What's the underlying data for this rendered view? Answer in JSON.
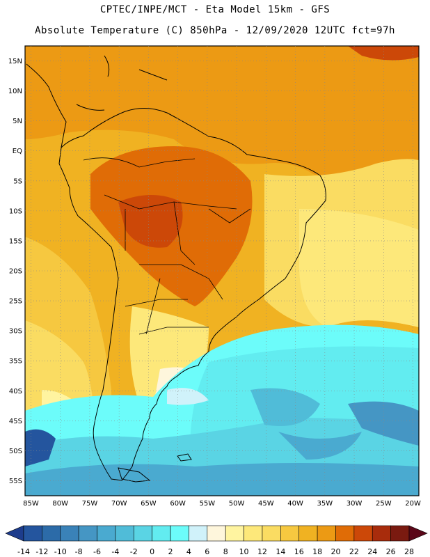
{
  "header": {
    "line1": "CPTEC/INPE/MCT -  Eta Model 15km - GFS",
    "line2": "Absolute Temperature (C) 850hPa - 12/09/2020 12UTC fct=97h"
  },
  "map": {
    "lat_labels": [
      "15N",
      "10N",
      "5N",
      "EQ",
      "5S",
      "10S",
      "15S",
      "20S",
      "25S",
      "30S",
      "35S",
      "40S",
      "45S",
      "50S",
      "55S"
    ],
    "lon_labels": [
      "85W",
      "80W",
      "75W",
      "70W",
      "65W",
      "60W",
      "55W",
      "50W",
      "45W",
      "40W",
      "35W",
      "30W",
      "25W",
      "20W"
    ],
    "lat_range": [
      17.5,
      -57.5
    ],
    "lon_range": [
      -86,
      -19
    ]
  },
  "colorbar": {
    "labels": [
      "-14",
      "-12",
      "-10",
      "-8",
      "-6",
      "-4",
      "-2",
      "0",
      "2",
      "4",
      "6",
      "8",
      "10",
      "12",
      "14",
      "16",
      "18",
      "20",
      "22",
      "24",
      "26",
      "28"
    ],
    "colors": [
      "#1d3c8c",
      "#24559e",
      "#2c6ba8",
      "#3a82b8",
      "#4596c4",
      "#4aaad0",
      "#50bcd8",
      "#5ad4e4",
      "#62ecf0",
      "#6cfcfa",
      "#d0f2fa",
      "#fef6dc",
      "#fff4a0",
      "#fde87a",
      "#fadc62",
      "#f6c840",
      "#f0b222",
      "#ec9a14",
      "#e06c06",
      "#cc4808",
      "#a82c0c",
      "#7a1a10",
      "#5a0618"
    ]
  }
}
